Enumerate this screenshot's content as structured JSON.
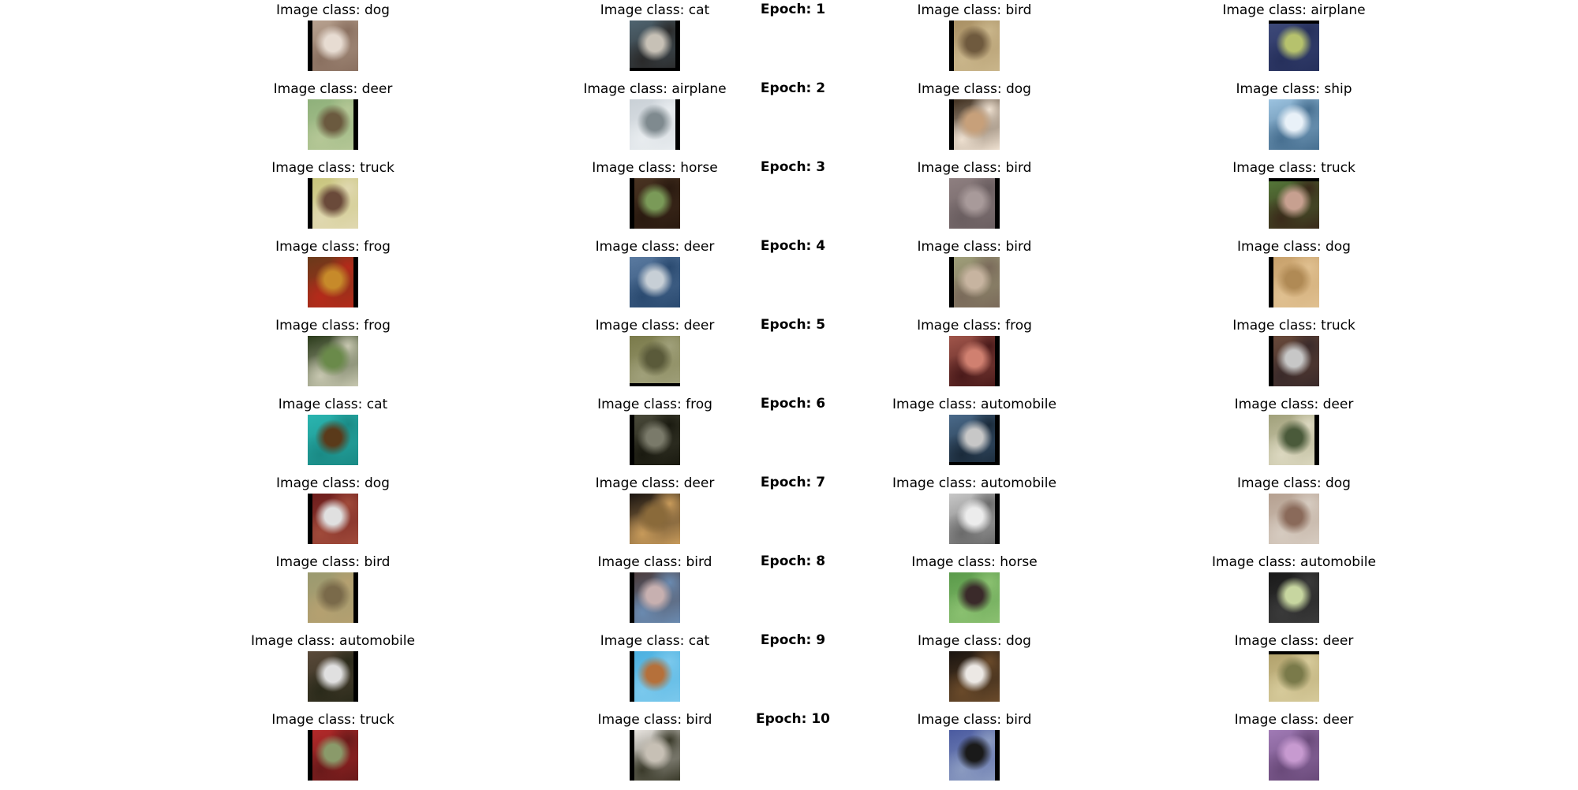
{
  "rows": [
    {
      "epoch": "Epoch: 1",
      "cells": [
        {
          "caption": "Image class: dog",
          "icon": "dog-photo",
          "colors": [
            "#b8a290",
            "#e7dcd2",
            "#8a7060"
          ],
          "frame": "left"
        },
        {
          "caption": "Image class: cat",
          "icon": "cat-photo",
          "colors": [
            "#4f6470",
            "#c7c1b6",
            "#2a2a2a"
          ],
          "frame": "right-bottom"
        },
        {
          "caption": "Image class: bird",
          "icon": "bird-photo",
          "colors": [
            "#a88f63",
            "#6f5a3e",
            "#c9b58a"
          ],
          "frame": "left"
        },
        {
          "caption": "Image class: airplane",
          "icon": "airplane-photo",
          "colors": [
            "#3e4a7a",
            "#b6c26d",
            "#26305c"
          ],
          "frame": "top"
        }
      ]
    },
    {
      "epoch": "Epoch: 2",
      "cells": [
        {
          "caption": "Image class: deer",
          "icon": "deer-photo",
          "colors": [
            "#8eb07a",
            "#6b5a3f",
            "#b5c796"
          ],
          "frame": "right"
        },
        {
          "caption": "Image class: airplane",
          "icon": "airplane-photo",
          "colors": [
            "#c9d0d6",
            "#7f8a8f",
            "#e8ecef"
          ],
          "frame": "right"
        },
        {
          "caption": "Image class: dog",
          "icon": "dog-photo",
          "colors": [
            "#3a2a1a",
            "#c7a07a",
            "#eee0d0"
          ],
          "frame": "left"
        },
        {
          "caption": "Image class: ship",
          "icon": "ship-photo",
          "colors": [
            "#9cc3e0",
            "#e9f1f8",
            "#476f90"
          ],
          "frame": "none"
        }
      ]
    },
    {
      "epoch": "Epoch: 3",
      "cells": [
        {
          "caption": "Image class: truck",
          "icon": "truck-photo",
          "colors": [
            "#c7c47a",
            "#6a4a3a",
            "#e0d8b0"
          ],
          "frame": "left"
        },
        {
          "caption": "Image class: horse",
          "icon": "horse-photo",
          "colors": [
            "#4a3422",
            "#7a9a58",
            "#2a1a10"
          ],
          "frame": "left"
        },
        {
          "caption": "Image class: bird",
          "icon": "bird-photo",
          "colors": [
            "#8e7f80",
            "#a89a9a",
            "#6a5e60"
          ],
          "frame": "right"
        },
        {
          "caption": "Image class: truck",
          "icon": "truck-photo",
          "colors": [
            "#557a3a",
            "#c7a090",
            "#3a2a1a"
          ],
          "frame": "top"
        }
      ]
    },
    {
      "epoch": "Epoch: 4",
      "cells": [
        {
          "caption": "Image class: frog",
          "icon": "frog-photo",
          "colors": [
            "#6a3a1a",
            "#c78a2a",
            "#b52a1a"
          ],
          "frame": "right"
        },
        {
          "caption": "Image class: deer",
          "icon": "deer-photo",
          "colors": [
            "#5a7aa0",
            "#c7cfd6",
            "#2a4a70"
          ],
          "frame": "none"
        },
        {
          "caption": "Image class: bird",
          "icon": "bird-photo",
          "colors": [
            "#a0a07a",
            "#c7b4a0",
            "#7a6a5a"
          ],
          "frame": "left"
        },
        {
          "caption": "Image class: dog",
          "icon": "dog-photo",
          "colors": [
            "#c7a06a",
            "#b08a55",
            "#e0c090"
          ],
          "frame": "left"
        }
      ]
    },
    {
      "epoch": "Epoch: 5",
      "cells": [
        {
          "caption": "Image class: frog",
          "icon": "frog-photo",
          "colors": [
            "#2a3a1a",
            "#6a8a4a",
            "#c7c7b0"
          ],
          "frame": "none"
        },
        {
          "caption": "Image class: deer",
          "icon": "deer-photo",
          "colors": [
            "#7a7a4a",
            "#5a5a3a",
            "#a0a07a"
          ],
          "frame": "bottom"
        },
        {
          "caption": "Image class: frog",
          "icon": "frog-photo",
          "colors": [
            "#a0554a",
            "#d08070",
            "#4a1a1a"
          ],
          "frame": "right"
        },
        {
          "caption": "Image class: truck",
          "icon": "truck-photo",
          "colors": [
            "#6a4a3a",
            "#c7c7c7",
            "#3a2a2a"
          ],
          "frame": "left"
        }
      ]
    },
    {
      "epoch": "Epoch: 6",
      "cells": [
        {
          "caption": "Image class: cat",
          "icon": "cat-photo",
          "colors": [
            "#2ab5b0",
            "#5a3a1a",
            "#1a8a85"
          ],
          "frame": "none"
        },
        {
          "caption": "Image class: frog",
          "icon": "frog-photo",
          "colors": [
            "#4a4a3a",
            "#7a7a6a",
            "#1a1a10"
          ],
          "frame": "left"
        },
        {
          "caption": "Image class: automobile",
          "icon": "automobile-photo",
          "colors": [
            "#4a6a8a",
            "#c7c7c7",
            "#1a2a3a"
          ],
          "frame": "bottom-right"
        },
        {
          "caption": "Image class: deer",
          "icon": "deer-photo",
          "colors": [
            "#a0a07a",
            "#4a5a3a",
            "#dcd8c0"
          ],
          "frame": "right"
        }
      ]
    },
    {
      "epoch": "Epoch: 7",
      "cells": [
        {
          "caption": "Image class: dog",
          "icon": "dog-photo",
          "colors": [
            "#6a1a1a",
            "#e0e0e0",
            "#a04a3a"
          ],
          "frame": "left"
        },
        {
          "caption": "Image class: deer",
          "icon": "deer-photo",
          "colors": [
            "#1a1410",
            "#8a6a3a",
            "#c79a5a"
          ],
          "frame": "none"
        },
        {
          "caption": "Image class: automobile",
          "icon": "automobile-photo",
          "colors": [
            "#c7c7c7",
            "#ececec",
            "#6a6a6a"
          ],
          "frame": "right"
        },
        {
          "caption": "Image class: dog",
          "icon": "dog-photo",
          "colors": [
            "#b5a090",
            "#8a6a5a",
            "#d6cbc0"
          ],
          "frame": "none"
        }
      ]
    },
    {
      "epoch": "Epoch: 8",
      "cells": [
        {
          "caption": "Image class: bird",
          "icon": "bird-photo",
          "colors": [
            "#9a9a70",
            "#7a6a4a",
            "#b5a070"
          ],
          "frame": "right"
        },
        {
          "caption": "Image class: bird",
          "icon": "bird-photo",
          "colors": [
            "#4a3a3a",
            "#c7b0b0",
            "#6a8ab0"
          ],
          "frame": "left"
        },
        {
          "caption": "Image class: horse",
          "icon": "horse-photo",
          "colors": [
            "#5a9a4a",
            "#3a2a2a",
            "#8ac070"
          ],
          "frame": "none"
        },
        {
          "caption": "Image class: automobile",
          "icon": "automobile-photo",
          "colors": [
            "#1a1a1a",
            "#c7d6a0",
            "#3a3a3a"
          ],
          "frame": "none"
        }
      ]
    },
    {
      "epoch": "Epoch: 9",
      "cells": [
        {
          "caption": "Image class: automobile",
          "icon": "automobile-photo",
          "colors": [
            "#5a4a3a",
            "#e0e0e0",
            "#2a2a1a"
          ],
          "frame": "right"
        },
        {
          "caption": "Image class: cat",
          "icon": "cat-photo",
          "colors": [
            "#4ab0e0",
            "#b5703a",
            "#7ac8ec"
          ],
          "frame": "left"
        },
        {
          "caption": "Image class: dog",
          "icon": "dog-photo",
          "colors": [
            "#1a1410",
            "#ece8e4",
            "#6a4a2a"
          ],
          "frame": "none"
        },
        {
          "caption": "Image class: deer",
          "icon": "deer-photo",
          "colors": [
            "#b0a06a",
            "#7a7a4a",
            "#d6ca9a"
          ],
          "frame": "top"
        }
      ]
    },
    {
      "epoch": "Epoch: 10",
      "cells": [
        {
          "caption": "Image class: truck",
          "icon": "truck-photo",
          "colors": [
            "#b52a2a",
            "#8a9a6a",
            "#6a1a1a"
          ],
          "frame": "left"
        },
        {
          "caption": "Image class: bird",
          "icon": "bird-photo",
          "colors": [
            "#ece8e4",
            "#c7c0b5",
            "#3a3a2a"
          ],
          "frame": "left"
        },
        {
          "caption": "Image class: bird",
          "icon": "bird-photo",
          "colors": [
            "#4a5aa0",
            "#1a1a1a",
            "#8a9ac0"
          ],
          "frame": "right"
        },
        {
          "caption": "Image class: deer",
          "icon": "deer-photo",
          "colors": [
            "#a07ab5",
            "#c79ad0",
            "#6a4a7a"
          ],
          "frame": "none"
        }
      ]
    }
  ]
}
